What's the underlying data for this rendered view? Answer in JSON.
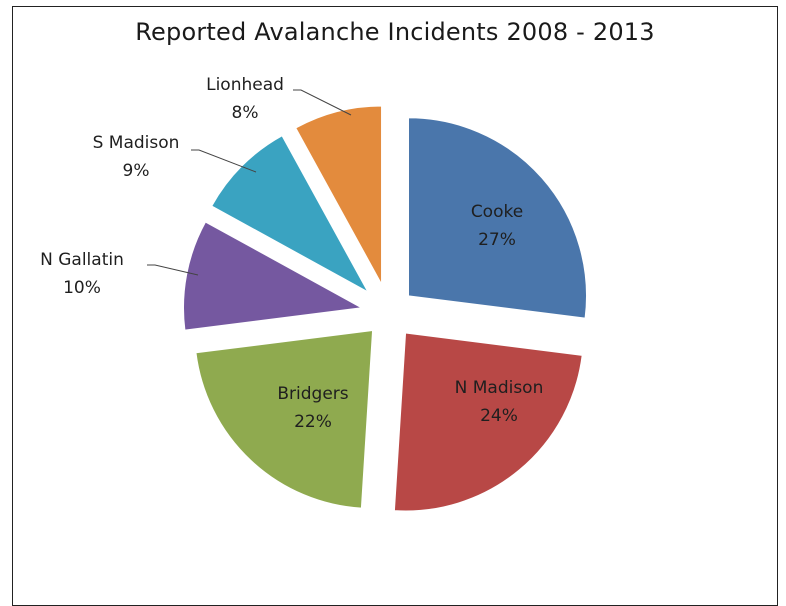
{
  "chart_data": {
    "type": "pie",
    "title": "Reported Avalanche Incidents 2008 - 2013",
    "slices": [
      {
        "label": "Cooke",
        "pct_label": "27%",
        "value": 27,
        "color": "#4a76ab"
      },
      {
        "label": "N Madison",
        "pct_label": "24%",
        "value": 24,
        "color": "#b84846"
      },
      {
        "label": "Bridgers",
        "pct_label": "22%",
        "value": 22,
        "color": "#8faa4f"
      },
      {
        "label": "N Gallatin",
        "pct_label": "10%",
        "value": 10,
        "color": "#7558a0"
      },
      {
        "label": "S Madison",
        "pct_label": "9%",
        "value": 9,
        "color": "#3aa3c1"
      },
      {
        "label": "Lionhead",
        "pct_label": "8%",
        "value": 8,
        "color": "#e38b3d"
      }
    ],
    "exploded": true,
    "legend": "none"
  }
}
